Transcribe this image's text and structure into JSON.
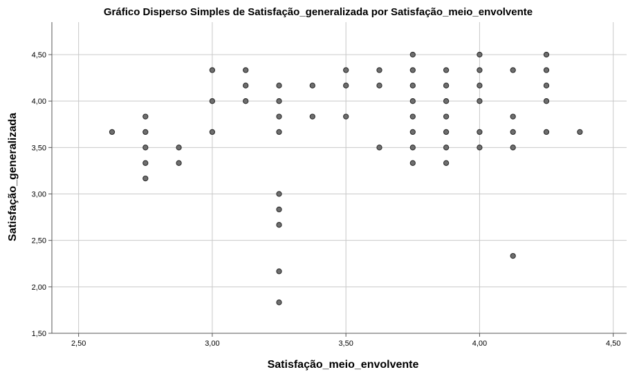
{
  "chart_data": {
    "type": "scatter",
    "title": "Gráfico Disperso Simples de Satisfação_generalizada por Satisfação_meio_envolvente",
    "xlabel": "Satisfação_meio_envolvente",
    "ylabel": "Satisfação_generalizada",
    "xlim": [
      2.4,
      4.55
    ],
    "ylim": [
      1.5,
      4.85
    ],
    "x_ticks": [
      "2,50",
      "3,00",
      "3,50",
      "4,00",
      "4,50"
    ],
    "x_tick_values": [
      2.5,
      3.0,
      3.5,
      4.0,
      4.5
    ],
    "y_ticks": [
      "1,50",
      "2,00",
      "2,50",
      "3,00",
      "3,50",
      "4,00",
      "4,50"
    ],
    "y_tick_values": [
      1.5,
      2.0,
      2.5,
      3.0,
      3.5,
      4.0,
      4.5
    ],
    "grid": true,
    "legend": "none",
    "colors": {
      "point_fill": "#6e6e6e",
      "point_stroke": "#2e2e2e",
      "grid": "#c8c8c8"
    },
    "points": [
      [
        2.625,
        3.667
      ],
      [
        2.75,
        3.833
      ],
      [
        2.75,
        3.667
      ],
      [
        2.75,
        3.5
      ],
      [
        2.75,
        3.333
      ],
      [
        2.75,
        3.167
      ],
      [
        2.875,
        3.5
      ],
      [
        2.875,
        3.333
      ],
      [
        3.0,
        4.333
      ],
      [
        3.0,
        4.0
      ],
      [
        3.0,
        3.667
      ],
      [
        3.125,
        4.333
      ],
      [
        3.125,
        4.167
      ],
      [
        3.125,
        4.0
      ],
      [
        3.25,
        4.167
      ],
      [
        3.25,
        4.0
      ],
      [
        3.25,
        3.833
      ],
      [
        3.25,
        3.667
      ],
      [
        3.25,
        3.0
      ],
      [
        3.25,
        2.833
      ],
      [
        3.25,
        2.667
      ],
      [
        3.25,
        2.167
      ],
      [
        3.25,
        1.833
      ],
      [
        3.375,
        4.167
      ],
      [
        3.375,
        3.833
      ],
      [
        3.5,
        4.333
      ],
      [
        3.5,
        4.167
      ],
      [
        3.5,
        3.833
      ],
      [
        3.625,
        4.333
      ],
      [
        3.625,
        4.167
      ],
      [
        3.625,
        3.5
      ],
      [
        3.75,
        4.5
      ],
      [
        3.75,
        4.333
      ],
      [
        3.75,
        4.167
      ],
      [
        3.75,
        4.0
      ],
      [
        3.75,
        3.833
      ],
      [
        3.75,
        3.667
      ],
      [
        3.75,
        3.5
      ],
      [
        3.75,
        3.333
      ],
      [
        3.875,
        4.333
      ],
      [
        3.875,
        4.167
      ],
      [
        3.875,
        4.0
      ],
      [
        3.875,
        3.833
      ],
      [
        3.875,
        3.667
      ],
      [
        3.875,
        3.5
      ],
      [
        3.875,
        3.333
      ],
      [
        4.0,
        4.5
      ],
      [
        4.0,
        4.333
      ],
      [
        4.0,
        4.167
      ],
      [
        4.0,
        4.0
      ],
      [
        4.0,
        3.667
      ],
      [
        4.0,
        3.5
      ],
      [
        4.125,
        4.333
      ],
      [
        4.125,
        3.833
      ],
      [
        4.125,
        3.667
      ],
      [
        4.125,
        3.5
      ],
      [
        4.125,
        2.333
      ],
      [
        4.25,
        4.5
      ],
      [
        4.25,
        4.333
      ],
      [
        4.25,
        4.167
      ],
      [
        4.25,
        4.0
      ],
      [
        4.25,
        3.667
      ],
      [
        4.375,
        3.667
      ]
    ]
  }
}
